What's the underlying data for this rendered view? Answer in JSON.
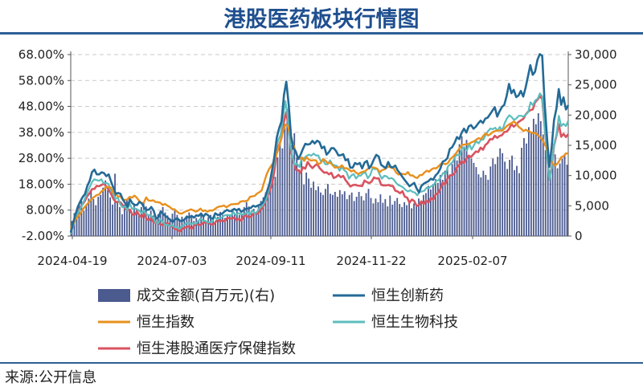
{
  "title": "港股医药板块行情图",
  "source": "来源:公开信息",
  "chart_data": {
    "type": "line",
    "x_tick_labels": [
      "2024-04-19",
      "2024-07-03",
      "2024-09-11",
      "2024-11-22",
      "2025-02-07"
    ],
    "left_ticks": [
      "68.00%",
      "58.00%",
      "48.00%",
      "38.00%",
      "28.00%",
      "18.00%",
      "8.00%",
      "-2.00%"
    ],
    "right_ticks": [
      "30,000",
      "25,000",
      "20,000",
      "15,000",
      "10,000",
      "5,000",
      "0"
    ],
    "ylim_left": [
      -2,
      68
    ],
    "ylim_right": [
      0,
      30000
    ],
    "grid": "horizontal dashed",
    "legend_position": "bottom",
    "volume_series": {
      "name": "成交金额(百万元)(右)",
      "axis": "right",
      "color": "#4b5a8f",
      "values": [
        2500,
        3800,
        4500,
        5200,
        5800,
        4200,
        5000,
        6200,
        7400,
        6100,
        5100,
        6500,
        6800,
        8000,
        9200,
        7600,
        6400,
        5200,
        10300,
        5800,
        4800,
        3600,
        5200,
        6100,
        4400,
        3900,
        5200,
        4600,
        3700,
        4800,
        5600,
        4900,
        3600,
        4200,
        3400,
        3000,
        3600,
        4100,
        4800,
        3900,
        3400,
        2900,
        3700,
        4300,
        3500,
        2800,
        3200,
        2600,
        3400,
        3900,
        3100,
        2500,
        3000,
        2600,
        3800,
        3300,
        2600,
        3100,
        3500,
        2800,
        2400,
        3200,
        4000,
        3500,
        3000,
        3600,
        3300,
        4500,
        3800,
        4100,
        3500,
        3600,
        4800,
        5600,
        4900,
        4200,
        4500,
        3900,
        5000,
        5800,
        6400,
        7200,
        6500,
        8000,
        11000,
        9800,
        13000,
        15500,
        14500,
        18000,
        21000,
        18500,
        15000,
        17000,
        13000,
        11000,
        12500,
        8500,
        10500,
        9500,
        8000,
        9000,
        7600,
        8200,
        7200,
        6800,
        7800,
        8600,
        7000,
        6800,
        7300,
        6500,
        7600,
        6900,
        7400,
        6100,
        6800,
        7200,
        5800,
        6500,
        7300,
        6600,
        5900,
        7100,
        7800,
        6300,
        5400,
        6200,
        5600,
        6900,
        5500,
        6100,
        4900,
        6700,
        5200,
        5800,
        6300,
        5300,
        4800,
        5600,
        5100,
        5700,
        4600,
        5400,
        4900,
        6200,
        5500,
        6800,
        7100,
        8300,
        7700,
        8600,
        9400,
        8800,
        10100,
        9300,
        10800,
        11400,
        10200,
        11900,
        13600,
        12500,
        15200,
        16500,
        14800,
        15900,
        13400,
        12800,
        12100,
        11400,
        10200,
        9700,
        10800,
        10100,
        9300,
        11500,
        12800,
        11900,
        13100,
        14500,
        13700,
        12300,
        11100,
        12600,
        13300,
        10900,
        11600,
        10400,
        14600,
        16200,
        15300,
        18000,
        17200,
        19400,
        18500,
        20300,
        19000,
        16800,
        14200,
        12500,
        10800,
        11900,
        13500,
        11200,
        12000,
        12800,
        13500,
        11800
      ]
    },
    "series": [
      {
        "name": "恒生创新药",
        "axis": "left",
        "color": "#246a96",
        "width": 2.6,
        "values": [
          -0.7,
          3,
          6.3,
          9.3,
          11.3,
          13,
          14.2,
          17.3,
          19.3,
          22.7,
          23.6,
          21.8,
          21.8,
          22.6,
          22.3,
          21.1,
          21.8,
          19.1,
          16.6,
          14.3,
          14.6,
          14.3,
          12.1,
          10.7,
          9.3,
          12.2,
          10.7,
          10,
          10,
          11.2,
          10.6,
          8.9,
          8.1,
          8.2,
          9.2,
          7.8,
          4.7,
          5.3,
          7.5,
          6.5,
          5.7,
          5,
          4.3,
          3.4,
          4.4,
          4.9,
          3.9,
          3.8,
          4.4,
          5.5,
          5.1,
          5.8,
          5.1,
          6,
          5.8,
          6.7,
          5.5,
          6.6,
          6,
          4.9,
          4.7,
          6.8,
          6.1,
          6.3,
          6.7,
          7.5,
          8.1,
          7.6,
          7.7,
          8.5,
          7.9,
          8.5,
          7.3,
          8,
          8.5,
          8.7,
          8.8,
          9.7,
          9.3,
          9.8,
          10.1,
          10.9,
          12.9,
          15.7,
          18.5,
          23.4,
          28.9,
          36.1,
          39.7,
          42.3,
          52.4,
          57.6,
          48.7,
          36.5,
          31.8,
          30.6,
          27.7,
          29.3,
          31.6,
          33.6,
          33.3,
          33.5,
          34.7,
          33.7,
          34.8,
          34.2,
          31.9,
          32.5,
          29.4,
          30.4,
          31.9,
          31.9,
          30.8,
          29.1,
          29.2,
          29.6,
          27.2,
          27.6,
          24.4,
          24.4,
          26.2,
          25.7,
          26.2,
          24.1,
          26.3,
          27,
          24.1,
          25.5,
          27.7,
          29.3,
          28.7,
          25.5,
          24.8,
          24.2,
          26.6,
          24.7,
          24.5,
          25.2,
          23.3,
          22.2,
          20.8,
          19.6,
          18.4,
          17.2,
          17.9,
          18.5,
          16.3,
          14.8,
          17.3,
          18.2,
          18.7,
          19.2,
          20.1,
          19.7,
          21.4,
          22.3,
          24,
          26.7,
          27.1,
          28.1,
          31.6,
          32.3,
          33.9,
          36.2,
          35.4,
          37.9,
          39.4,
          37.9,
          40.3,
          40.8,
          39.4,
          40.2,
          41.5,
          42.5,
          41.6,
          43.3,
          43.7,
          45,
          46.4,
          47.7,
          44.1,
          46.1,
          47.8,
          48.6,
          52.1,
          56.7,
          53.1,
          54.4,
          51.6,
          52.2,
          54,
          51.8,
          55.2,
          59.6,
          63.9,
          60.2,
          61.4,
          66,
          68.2,
          67.5,
          49.9,
          36.3,
          24.7,
          32.4,
          42.7,
          47.2,
          54.7,
          48.6,
          51.5,
          46.8,
          48.5
        ]
      },
      {
        "name": "恒生指数",
        "axis": "left",
        "color": "#e8901e",
        "width": 2.4,
        "values": [
          1,
          2.6,
          4.3,
          5.5,
          6.6,
          8.1,
          9.3,
          10.3,
          11.4,
          12.4,
          13.1,
          13.8,
          14,
          15.2,
          15.8,
          17,
          16.9,
          16.7,
          14.7,
          14.4,
          13.2,
          13.4,
          12.2,
          11.9,
          12.1,
          13.1,
          12.8,
          13.6,
          12.8,
          11.6,
          10.7,
          10.9,
          12.9,
          11.7,
          11.6,
          11.8,
          11.1,
          11.1,
          10.8,
          10,
          10.4,
          9.7,
          9.2,
          8.4,
          8.3,
          7.5,
          6.8,
          6.6,
          7.1,
          7.6,
          7.9,
          8.3,
          7.9,
          7.4,
          7.8,
          8.6,
          7.6,
          7.9,
          7.4,
          7.9,
          7.8,
          8.3,
          9,
          9.4,
          9.5,
          9.8,
          9.1,
          9.7,
          10.2,
          10.3,
          10.4,
          10.4,
          11.3,
          11.5,
          11.4,
          11.7,
          13.1,
          13.3,
          13.5,
          14.4,
          14.9,
          15.6,
          18.7,
          21.6,
          23.6,
          25.1,
          26.3,
          28.9,
          31.4,
          34.7,
          38.2,
          41,
          40.6,
          37.9,
          34.3,
          31.7,
          28.9,
          27.8,
          28.3,
          27,
          28.4,
          27.5,
          27.1,
          27.3,
          27.2,
          25.7,
          26.2,
          27.7,
          27.1,
          26.1,
          26.4,
          25.4,
          24.4,
          24.5,
          24.5,
          25.3,
          24.1,
          24.2,
          23.6,
          22.9,
          23.4,
          22.4,
          21.9,
          22.5,
          22.8,
          23.1,
          23.9,
          24.8,
          24.5,
          24.3,
          24,
          22.6,
          23.4,
          23.7,
          24.4,
          24.9,
          24.3,
          24.1,
          22.5,
          21.7,
          22.1,
          21.9,
          21.8,
          22.7,
          21.4,
          21.4,
          20.7,
          20.4,
          21.5,
          21.5,
          22.5,
          23.2,
          22.8,
          23.7,
          24.2,
          24.1,
          24.9,
          25.9,
          26,
          25.7,
          26.2,
          27.7,
          28.5,
          29.4,
          30.7,
          32.1,
          33.1,
          33.3,
          33.4,
          33.6,
          34.2,
          34.5,
          35.2,
          35.8,
          35.4,
          36.7,
          37.6,
          36.8,
          37.3,
          38.1,
          38.5,
          38.7,
          38.7,
          38.7,
          39.5,
          40.5,
          41.1,
          41.6,
          42.2,
          41.3,
          40.1,
          39.4,
          38.5,
          39,
          38.5,
          38.1,
          37.6,
          37.8,
          37,
          36.2,
          35.2,
          33.4,
          31.6,
          28,
          26.6,
          25.3,
          25.5,
          26.7,
          28.4,
          28.8,
          29.9,
          29.8
        ]
      },
      {
        "name": "恒生生物科技",
        "axis": "left",
        "color": "#5cbdbd",
        "width": 2.2,
        "values": [
          -1.3,
          1.8,
          4.3,
          6.8,
          8.5,
          10.2,
          12.4,
          14.7,
          16.8,
          18.8,
          19.9,
          19.6,
          19.3,
          19.9,
          18.3,
          18.5,
          18.1,
          15.6,
          14.3,
          12.3,
          12.8,
          10.2,
          9.1,
          9.5,
          8,
          10.6,
          8.5,
          8.8,
          8.3,
          7.9,
          6.8,
          7.9,
          6.5,
          6.1,
          5.9,
          4.8,
          3.2,
          3,
          4.5,
          3.5,
          2.3,
          2.4,
          1.9,
          2.2,
          1.5,
          1.5,
          0.7,
          1.7,
          2.2,
          2.9,
          3.1,
          2.6,
          3,
          2.7,
          3.7,
          4.7,
          4,
          3.9,
          3.3,
          3.3,
          3.6,
          5.5,
          4.4,
          4.9,
          5.1,
          5.9,
          6.1,
          6.1,
          5.9,
          7.3,
          6,
          6.9,
          6.5,
          6.4,
          6.6,
          7.4,
          6.4,
          7.9,
          6.8,
          7.3,
          8.8,
          9.4,
          10.8,
          12.4,
          16.1,
          20.4,
          24.5,
          31.7,
          35,
          37,
          43.6,
          50.1,
          44.4,
          33.9,
          28.8,
          25.6,
          25.9,
          24.6,
          28.2,
          28.1,
          28.9,
          29.4,
          29,
          29.8,
          29.1,
          29.1,
          27,
          27.2,
          25.7,
          25.7,
          27.2,
          25.6,
          25.3,
          25,
          23.2,
          24.6,
          23.4,
          22.7,
          20.1,
          21.4,
          21.9,
          20.2,
          21.3,
          21.3,
          22.3,
          22.5,
          20.3,
          21.5,
          24.1,
          23.8,
          23.9,
          21.8,
          20.1,
          21.3,
          21,
          20.1,
          20.4,
          19.8,
          18.5,
          17.6,
          17.3,
          16.7,
          15.8,
          15.2,
          15.7,
          15,
          14.8,
          13.7,
          15.1,
          15.2,
          15.5,
          16.7,
          16.5,
          17.3,
          17.7,
          19.4,
          19.5,
          20.8,
          22.4,
          22,
          24.9,
          25.7,
          26.6,
          28.7,
          29.4,
          29.2,
          31.9,
          32.1,
          31,
          33.5,
          31.4,
          33,
          34.6,
          33.7,
          35.2,
          35.2,
          37.1,
          38.5,
          39.5,
          39.2,
          39.8,
          38.6,
          40.1,
          38.6,
          41.5,
          43.4,
          44.6,
          43.9,
          42.8,
          43.4,
          44.4,
          44.4,
          44.1,
          44.8,
          45.8,
          49.6,
          48.5,
          50.3,
          51,
          53,
          51.8,
          40,
          28.6,
          19.8,
          24.4,
          33.4,
          37.1,
          44.4,
          40.4,
          41.3,
          40.4,
          42.5
        ]
      },
      {
        "name": "恒生港股通医疗保健指数",
        "axis": "left",
        "color": "#d9535f",
        "width": 2.6,
        "values": [
          -0.2,
          1.9,
          5.4,
          7,
          8.9,
          10.2,
          11.6,
          13.4,
          14.6,
          16.1,
          16.2,
          17.4,
          17.2,
          17.7,
          18.2,
          17.2,
          15.9,
          14.3,
          12.3,
          11.1,
          11.2,
          11,
          9.9,
          8.5,
          8.1,
          8.2,
          6.3,
          6.3,
          7.5,
          5.9,
          5.3,
          6.8,
          4.5,
          4.2,
          4.8,
          3.2,
          3.3,
          3.1,
          2.5,
          2.2,
          2.9,
          2.9,
          1.8,
          1.9,
          0.6,
          0.6,
          -0.3,
          0.7,
          1.2,
          1.5,
          1.8,
          0.8,
          1.9,
          2.9,
          2.2,
          2.4,
          3.2,
          3.2,
          3.3,
          2.6,
          2.4,
          3.2,
          4.7,
          3.6,
          4.1,
          3.6,
          4.9,
          4.9,
          4.7,
          5.2,
          4.2,
          4.6,
          3.9,
          5.6,
          5.9,
          5.3,
          5.4,
          6.5,
          6.9,
          6.6,
          8,
          9.1,
          10.8,
          13.1,
          15.4,
          18.1,
          23.3,
          31.8,
          33.2,
          35.9,
          42.1,
          45.9,
          39.6,
          30.6,
          27,
          23.6,
          23.4,
          22.4,
          24.5,
          24,
          26.6,
          25.2,
          24.2,
          25.1,
          25.8,
          24.3,
          23.3,
          22.4,
          22.6,
          21.8,
          22.4,
          20.4,
          20.8,
          21.6,
          20.7,
          21.2,
          19.6,
          18.4,
          17.1,
          17.6,
          17.8,
          17.5,
          17.4,
          17.3,
          19.4,
          18.8,
          18.4,
          19,
          20.6,
          20.2,
          20.3,
          17.8,
          17.5,
          17.5,
          17.7,
          17.4,
          17.3,
          15.5,
          15.2,
          14.5,
          15.3,
          13.2,
          12.8,
          10.9,
          12.1,
          11.5,
          9.6,
          9.9,
          11.4,
          10.3,
          11.7,
          10.9,
          12.7,
          12,
          14,
          14.5,
          16.2,
          18.6,
          17.9,
          20.1,
          21.3,
          21.5,
          22.1,
          24.5,
          25.4,
          26.9,
          26.1,
          27.8,
          29,
          28.5,
          29.6,
          30.6,
          30.4,
          32.1,
          31.3,
          33.1,
          33.9,
          35.4,
          35.3,
          36.7,
          35.9,
          36.6,
          36.9,
          38.1,
          38.3,
          39.3,
          41.2,
          40.2,
          41,
          42,
          42.6,
          43.2,
          44.8,
          45.9,
          46.6,
          46.8,
          49.6,
          50.6,
          51.9,
          50.9,
          40.7,
          29.7,
          20.3,
          24.3,
          32.9,
          36.7,
          41.2,
          36.3,
          37.4,
          36.2,
          37.3
        ]
      }
    ]
  }
}
